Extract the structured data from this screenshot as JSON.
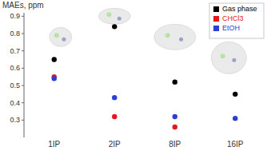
{
  "chart_data": {
    "type": "scatter",
    "y_label": "MAEs, ppm",
    "categories": [
      "1IP",
      "2IP",
      "8IP",
      "16IP"
    ],
    "series": [
      {
        "name": "Gas phase",
        "color": "#000000",
        "values": [
          0.65,
          0.84,
          0.52,
          0.45
        ]
      },
      {
        "name": "CHCl3",
        "color": "#e8161b",
        "values": [
          0.55,
          0.32,
          0.26,
          null
        ]
      },
      {
        "name": "EtOH",
        "color": "#2b3fd6",
        "values": [
          0.54,
          0.43,
          0.32,
          0.31
        ]
      }
    ],
    "ylim": [
      0.2,
      0.92
    ],
    "yticks": [
      0.3,
      0.4,
      0.5,
      0.6,
      0.7,
      0.8,
      0.9
    ],
    "grid": false,
    "legend": "top-right",
    "marker": "circle"
  }
}
